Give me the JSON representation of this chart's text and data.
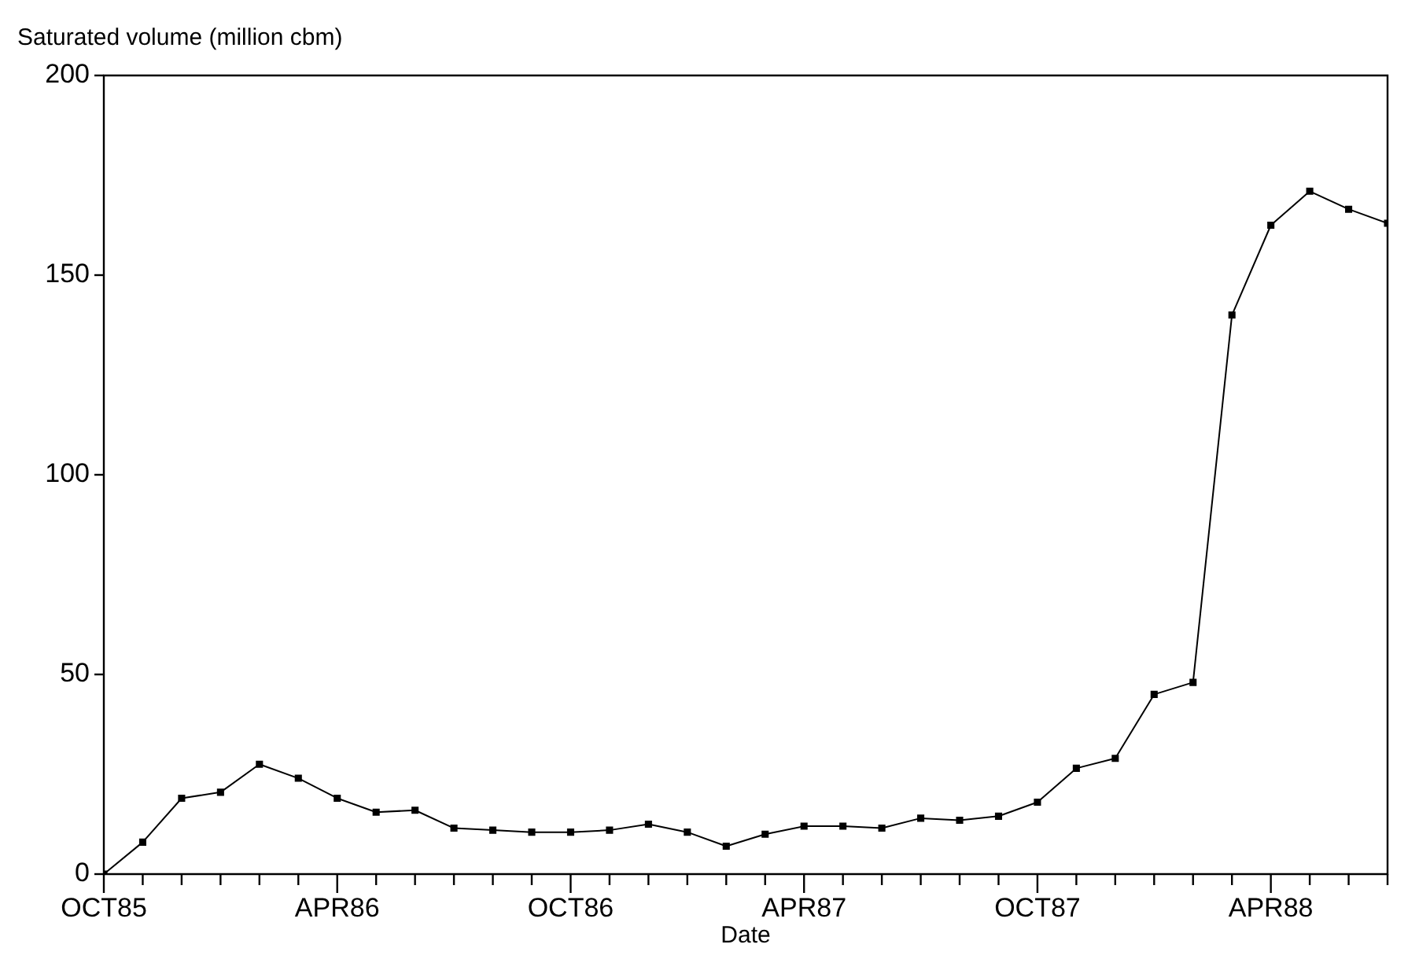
{
  "chart_data": {
    "type": "line",
    "ylabel": "Saturated volume (million cbm)",
    "xlabel": "Date",
    "x": [
      "1985-10",
      "1985-11",
      "1985-12",
      "1986-01",
      "1986-02",
      "1986-03",
      "1986-04",
      "1986-05",
      "1986-06",
      "1986-07",
      "1986-08",
      "1986-09",
      "1986-10",
      "1986-11",
      "1986-12",
      "1987-01",
      "1987-02",
      "1987-03",
      "1987-04",
      "1987-05",
      "1987-06",
      "1987-07",
      "1987-08",
      "1987-09",
      "1987-10",
      "1987-11",
      "1987-12",
      "1988-01",
      "1988-02",
      "1988-03",
      "1988-04",
      "1988-05",
      "1988-06",
      "1988-07"
    ],
    "series": [
      {
        "color": "#000000",
        "values": [
          0,
          8,
          19,
          20.5,
          27.5,
          24,
          19,
          15.5,
          16,
          11.5,
          11,
          10.5,
          10.5,
          11,
          12.5,
          10.5,
          7,
          10,
          12,
          12,
          11.5,
          14,
          13.5,
          14.5,
          18,
          26.5,
          29,
          45,
          48,
          140,
          162.5,
          171,
          166.5,
          163
        ]
      }
    ],
    "xlim": [
      "1985-10",
      "1988-07"
    ],
    "xticks": [
      {
        "value": "1985-10",
        "label": "OCT85"
      },
      {
        "value": "1985-11",
        "label": null
      },
      {
        "value": "1985-12",
        "label": null
      },
      {
        "value": "1986-01",
        "label": null
      },
      {
        "value": "1986-02",
        "label": null
      },
      {
        "value": "1986-03",
        "label": null
      },
      {
        "value": "1986-04",
        "label": "APR86"
      },
      {
        "value": "1986-05",
        "label": null
      },
      {
        "value": "1986-06",
        "label": null
      },
      {
        "value": "1986-07",
        "label": null
      },
      {
        "value": "1986-08",
        "label": null
      },
      {
        "value": "1986-09",
        "label": null
      },
      {
        "value": "1986-10",
        "label": "OCT86"
      },
      {
        "value": "1986-11",
        "label": null
      },
      {
        "value": "1986-12",
        "label": null
      },
      {
        "value": "1987-01",
        "label": null
      },
      {
        "value": "1987-02",
        "label": null
      },
      {
        "value": "1987-03",
        "label": null
      },
      {
        "value": "1987-04",
        "label": "APR87"
      },
      {
        "value": "1987-05",
        "label": null
      },
      {
        "value": "1987-06",
        "label": null
      },
      {
        "value": "1987-07",
        "label": null
      },
      {
        "value": "1987-08",
        "label": null
      },
      {
        "value": "1987-09",
        "label": null
      },
      {
        "value": "1987-10",
        "label": "OCT87"
      },
      {
        "value": "1987-11",
        "label": null
      },
      {
        "value": "1987-12",
        "label": null
      },
      {
        "value": "1988-01",
        "label": null
      },
      {
        "value": "1988-02",
        "label": null
      },
      {
        "value": "1988-03",
        "label": null
      },
      {
        "value": "1988-04",
        "label": "APR88"
      },
      {
        "value": "1988-05",
        "label": null
      },
      {
        "value": "1988-06",
        "label": null
      },
      {
        "value": "1988-07",
        "label": null
      }
    ],
    "ylim": [
      0,
      200
    ],
    "yticks": [
      0,
      50,
      100,
      150,
      200
    ],
    "grid": false,
    "legend": false,
    "marker": "square",
    "line_style": "solid"
  }
}
